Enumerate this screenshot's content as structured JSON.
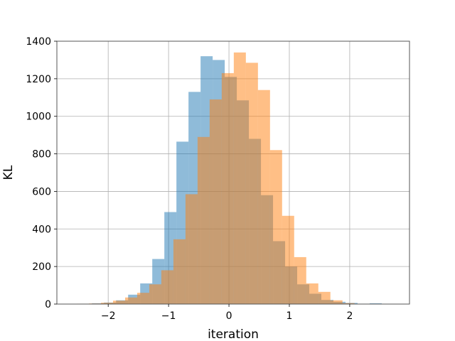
{
  "chart_data": {
    "type": "histogram",
    "title": "",
    "xlabel": "iteration",
    "ylabel": "KL",
    "xlim": [
      -2.85,
      2.99
    ],
    "ylim": [
      0,
      1400
    ],
    "xticks": [
      -2,
      -1,
      0,
      1,
      2
    ],
    "yticks": [
      0,
      200,
      400,
      600,
      800,
      1000,
      1200,
      1400
    ],
    "xtick_labels": [
      "−2",
      "−1",
      "0",
      "1",
      "2"
    ],
    "ytick_labels": [
      "0",
      "200",
      "400",
      "600",
      "800",
      "1000",
      "1200",
      "1400"
    ],
    "grid": true,
    "legend": "none",
    "series": [
      {
        "color": "#1f77b4",
        "alpha": 0.5,
        "bins": [
          [
            -2.47,
            -2.27,
            2
          ],
          [
            -2.27,
            -2.07,
            4
          ],
          [
            -2.07,
            -1.87,
            8
          ],
          [
            -1.87,
            -1.67,
            20
          ],
          [
            -1.67,
            -1.47,
            50
          ],
          [
            -1.47,
            -1.27,
            110
          ],
          [
            -1.27,
            -1.07,
            240
          ],
          [
            -1.07,
            -0.87,
            490
          ],
          [
            -0.87,
            -0.67,
            865
          ],
          [
            -0.67,
            -0.47,
            1130
          ],
          [
            -0.47,
            -0.27,
            1320
          ],
          [
            -0.27,
            -0.07,
            1300
          ],
          [
            -0.07,
            0.13,
            1210
          ],
          [
            0.13,
            0.33,
            1085
          ],
          [
            0.33,
            0.53,
            880
          ],
          [
            0.53,
            0.73,
            580
          ],
          [
            0.73,
            0.93,
            335
          ],
          [
            0.93,
            1.13,
            200
          ],
          [
            1.13,
            1.33,
            105
          ],
          [
            1.33,
            1.53,
            55
          ],
          [
            1.53,
            1.73,
            22
          ],
          [
            1.73,
            1.93,
            12
          ],
          [
            1.93,
            2.13,
            6
          ],
          [
            2.13,
            2.33,
            2
          ],
          [
            2.33,
            2.53,
            4
          ]
        ]
      },
      {
        "color": "#ff7f0e",
        "alpha": 0.5,
        "bins": [
          [
            -2.52,
            -2.32,
            2
          ],
          [
            -2.32,
            -2.12,
            3
          ],
          [
            -2.12,
            -1.92,
            7
          ],
          [
            -1.92,
            -1.72,
            18
          ],
          [
            -1.72,
            -1.52,
            35
          ],
          [
            -1.52,
            -1.32,
            60
          ],
          [
            -1.32,
            -1.12,
            105
          ],
          [
            -1.12,
            -0.92,
            180
          ],
          [
            -0.92,
            -0.72,
            345
          ],
          [
            -0.72,
            -0.52,
            585
          ],
          [
            -0.52,
            -0.32,
            890
          ],
          [
            -0.32,
            -0.12,
            1090
          ],
          [
            -0.12,
            0.08,
            1230
          ],
          [
            0.08,
            0.28,
            1340
          ],
          [
            0.28,
            0.48,
            1285
          ],
          [
            0.48,
            0.68,
            1140
          ],
          [
            0.68,
            0.88,
            820
          ],
          [
            0.88,
            1.08,
            470
          ],
          [
            1.08,
            1.28,
            250
          ],
          [
            1.28,
            1.48,
            110
          ],
          [
            1.48,
            1.68,
            65
          ],
          [
            1.68,
            1.88,
            20
          ],
          [
            1.88,
            2.08,
            5
          ]
        ]
      }
    ]
  }
}
